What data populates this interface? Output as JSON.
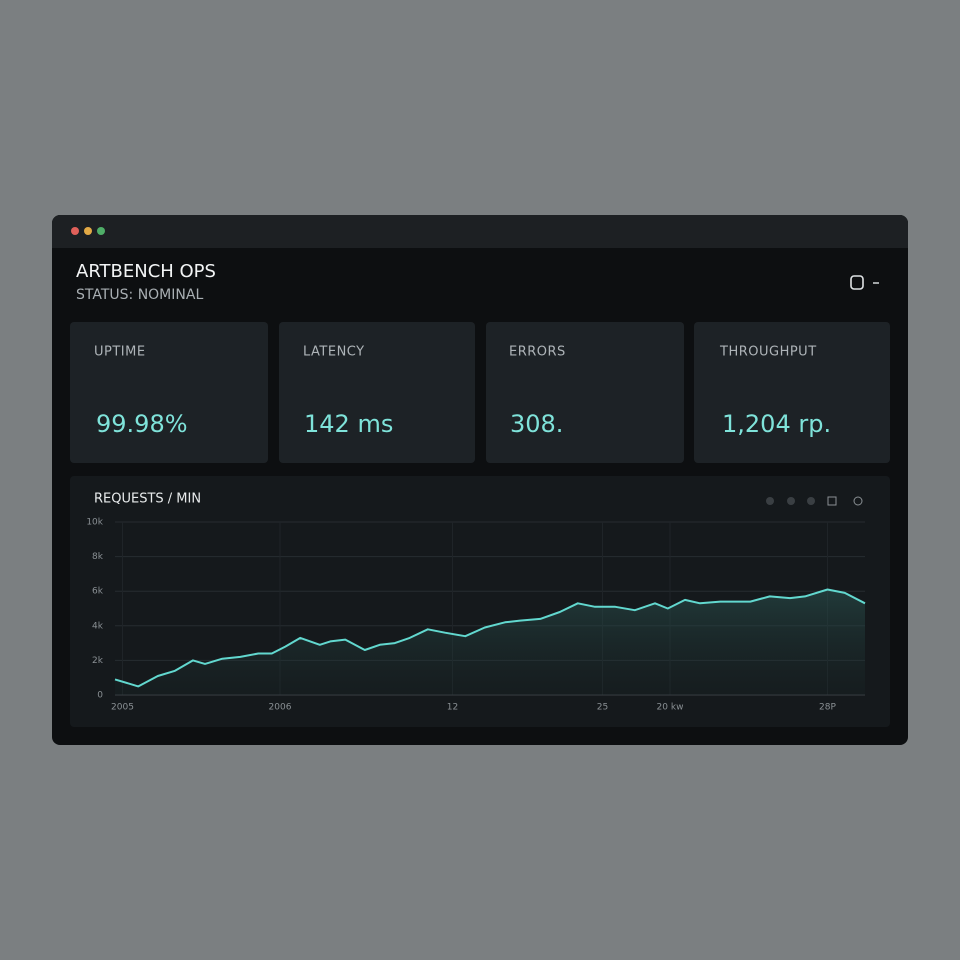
{
  "header": {
    "title": "ARTBENCH OPS",
    "status": "STATUS: NOMINAL"
  },
  "cards": [
    {
      "label": "UPTIME",
      "value": "99.98%"
    },
    {
      "label": "LATENCY",
      "value": "142 ms"
    },
    {
      "label": "ERRORS",
      "value": "308."
    },
    {
      "label": "THROUGHPUT",
      "value": "1,204 rp."
    }
  ],
  "chart_data": {
    "type": "line",
    "title": "REQUESTS / MIN",
    "color": "#62d8cf",
    "grid": true,
    "x": [
      0,
      3.1,
      5.7,
      8,
      10.4,
      12,
      14.3,
      16.7,
      19.1,
      20.9,
      22.7,
      24.7,
      27.3,
      28.7,
      30.7,
      33.3,
      35.3,
      37.3,
      39.3,
      41.7,
      44,
      46.7,
      49.3,
      52,
      54,
      56.7,
      59.3,
      61.7,
      64,
      66.7,
      69.3,
      72,
      73.7,
      76,
      78,
      80.7,
      84.7,
      87.3,
      90,
      92,
      95,
      97.3,
      100
    ],
    "values": [
      0.9,
      0.5,
      1.1,
      1.4,
      2.0,
      1.8,
      2.1,
      2.2,
      2.4,
      2.4,
      2.8,
      3.3,
      2.9,
      3.1,
      3.2,
      2.6,
      2.9,
      3.0,
      3.3,
      3.8,
      3.6,
      3.4,
      3.9,
      4.2,
      4.3,
      4.4,
      4.8,
      5.3,
      5.1,
      5.1,
      4.9,
      5.3,
      5.0,
      5.5,
      5.3,
      5.4,
      5.4,
      5.7,
      5.6,
      5.7,
      6.1,
      5.9,
      5.3
    ],
    "xlim": [
      0,
      100
    ],
    "ylim": [
      0,
      10
    ],
    "xticks": [
      {
        "value": 1,
        "label": "2005"
      },
      {
        "value": 22,
        "label": "2006"
      },
      {
        "value": 45,
        "label": "12"
      },
      {
        "value": 65,
        "label": "25"
      },
      {
        "value": 74,
        "label": "20 kw"
      },
      {
        "value": 95,
        "label": "28P"
      }
    ],
    "yticks": [
      0,
      {
        "value": 2,
        "label": "2k"
      },
      {
        "value": 4,
        "label": "4k"
      },
      {
        "value": 6,
        "label": "6k"
      },
      {
        "value": 8,
        "label": "8k"
      },
      {
        "value": 10,
        "label": "10k"
      }
    ]
  }
}
